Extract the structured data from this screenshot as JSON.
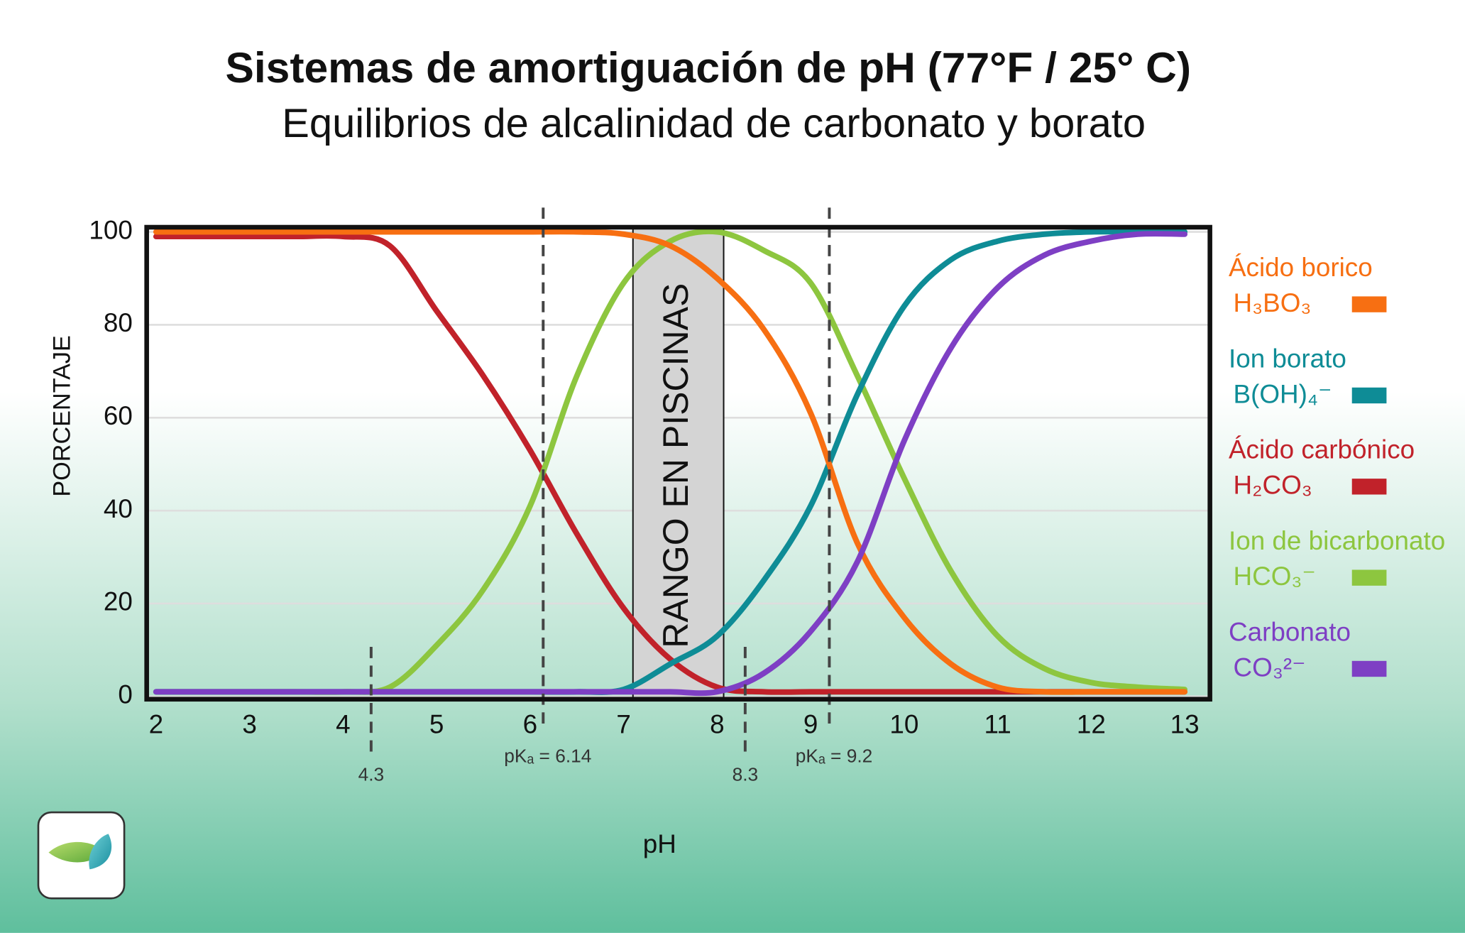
{
  "chart_data": {
    "type": "line",
    "title": "Sistemas de amortiguación de pH (77°F / 25° C)",
    "subtitle": "Equilibrios de alcalinidad de carbonato y borato",
    "x_label": "pH",
    "y_label": "PORCENTAJE",
    "x": [
      2,
      2.5,
      3,
      3.5,
      4,
      4.5,
      5,
      5.5,
      6,
      6.5,
      7,
      7.5,
      8,
      8.5,
      9,
      9.5,
      10,
      10.5,
      11,
      11.5,
      12,
      12.5,
      13
    ],
    "xlim": [
      1.9,
      13.27
    ],
    "xticks": [
      2,
      3,
      4,
      5,
      6,
      7,
      8,
      9,
      10,
      11,
      12,
      13
    ],
    "ylim": [
      -0.6,
      101
    ],
    "yticks": [
      0,
      20,
      40,
      60,
      80,
      100
    ],
    "grid": true,
    "band": {
      "x": [
        7.1,
        8.07
      ],
      "label": "RANGO EN PISCINAS",
      "color": "#d4d4d4"
    },
    "markers": [
      {
        "x": 4.3,
        "label": "4.3"
      },
      {
        "x": 6.14,
        "label": "pKₐ = 6.14"
      },
      {
        "x": 8.3,
        "label": "8.3"
      },
      {
        "x": 9.2,
        "label": "pKₐ = 9.2"
      }
    ],
    "series": [
      {
        "name": "Ácido carbónico",
        "formula": "H₂CO₃",
        "color": "#c1222a",
        "values": [
          99,
          99,
          99,
          99,
          99,
          97,
          83,
          69,
          53,
          35,
          19,
          8,
          2,
          1,
          1,
          1,
          1,
          1,
          1,
          1,
          1,
          1,
          1
        ]
      },
      {
        "name": "Ion de bicarbonato",
        "formula": "HCO₃⁻",
        "color": "#8dc63f",
        "values": [
          1,
          1,
          1,
          1,
          1,
          2,
          11,
          23,
          41,
          69,
          89,
          98,
          100,
          96,
          89,
          69,
          47,
          27,
          13,
          6,
          3,
          2,
          1.5
        ]
      },
      {
        "name": "Ion borato",
        "formula": "B(OH)₄⁻",
        "color": "#0e8c96",
        "values": [
          1,
          1,
          1,
          1,
          1,
          1,
          1,
          1,
          1,
          1,
          1.5,
          7,
          13,
          25,
          41,
          65,
          84,
          94,
          98,
          99.5,
          100,
          100,
          100
        ]
      },
      {
        "name": "Ácido borico",
        "formula": "H₃BO₃",
        "color": "#f76f12",
        "values": [
          100,
          100,
          100,
          100,
          100,
          100,
          100,
          100,
          100,
          100,
          99.5,
          97,
          90,
          79,
          61,
          33,
          17,
          7,
          2,
          1,
          1,
          1,
          1
        ]
      },
      {
        "name": "Carbonato",
        "formula": "CO₃²⁻",
        "color": "#7e3fc4",
        "values": [
          1,
          1,
          1,
          1,
          1,
          1,
          1,
          1,
          1,
          1,
          1,
          1,
          1,
          5,
          14,
          29,
          55,
          75,
          88,
          95,
          98,
          99.5,
          99.5
        ]
      }
    ],
    "legend_order": [
      3,
      2,
      0,
      1,
      4
    ]
  }
}
